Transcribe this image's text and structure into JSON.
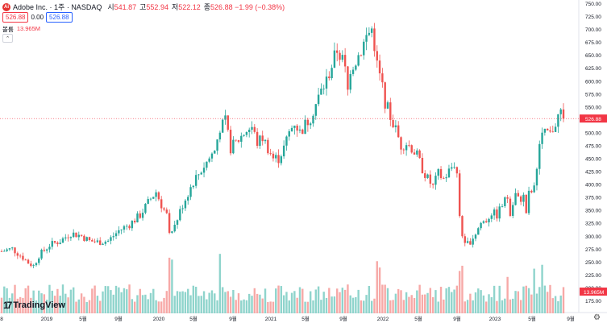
{
  "header": {
    "logo_text": "Ai",
    "title": "Adobe Inc. · 1주 · NASDAQ",
    "ohlc": [
      {
        "k": "시",
        "v": "541.87"
      },
      {
        "k": "고",
        "v": "552.94"
      },
      {
        "k": "저",
        "v": "522.12"
      },
      {
        "k": "종",
        "v": "526.88 −1.99 (−0.38%)"
      }
    ]
  },
  "bidask": {
    "bid": "526.88",
    "spread": "0.00",
    "ask": "526.88"
  },
  "volume": {
    "label": "볼륨",
    "value": "13.965M"
  },
  "brand": {
    "mark": "17",
    "name": "TradingView"
  },
  "colors": {
    "up": "#26a69a",
    "down": "#ef5350",
    "up_vol": "#8fd4cc",
    "down_vol": "#f7a9a7",
    "last": "#f23645"
  },
  "chart_data": {
    "type": "candlestick",
    "interval": "1주",
    "ylim": [
      150,
      750
    ],
    "y_ticks": [
      "175.00",
      "200.00",
      "225.00",
      "250.00",
      "275.00",
      "300.00",
      "325.00",
      "350.00",
      "375.00",
      "400.00",
      "425.00",
      "450.00",
      "475.00",
      "500.00",
      "525.00",
      "550.00",
      "575.00",
      "600.00",
      "625.00",
      "650.00",
      "675.00",
      "700.00",
      "725.00",
      "750.00"
    ],
    "x_ticks": [
      "8",
      "2019",
      "5월",
      "9월",
      "2020",
      "5월",
      "9월",
      "2021",
      "5월",
      "9월",
      "2022",
      "5월",
      "9월",
      "2023",
      "5월",
      "9월"
    ],
    "last_price": "526.88",
    "last_volume": "13.965M",
    "price_path": [
      [
        0,
        270
      ],
      [
        4,
        275
      ],
      [
        8,
        258
      ],
      [
        10,
        248
      ],
      [
        12,
        242
      ],
      [
        14,
        262
      ],
      [
        18,
        282
      ],
      [
        22,
        290
      ],
      [
        26,
        305
      ],
      [
        30,
        300
      ],
      [
        33,
        290
      ],
      [
        36,
        288
      ],
      [
        40,
        290
      ],
      [
        44,
        310
      ],
      [
        48,
        322
      ],
      [
        52,
        340
      ],
      [
        56,
        372
      ],
      [
        58,
        385
      ],
      [
        60,
        360
      ],
      [
        62,
        340
      ],
      [
        63,
        300
      ],
      [
        65,
        320
      ],
      [
        68,
        360
      ],
      [
        72,
        405
      ],
      [
        76,
        435
      ],
      [
        80,
        465
      ],
      [
        82,
        510
      ],
      [
        84,
        520
      ],
      [
        86,
        470
      ],
      [
        88,
        480
      ],
      [
        92,
        505
      ],
      [
        94,
        510
      ],
      [
        96,
        480
      ],
      [
        98,
        490
      ],
      [
        102,
        450
      ],
      [
        104,
        450
      ],
      [
        106,
        470
      ],
      [
        108,
        500
      ],
      [
        110,
        520
      ],
      [
        112,
        500
      ],
      [
        116,
        530
      ],
      [
        120,
        580
      ],
      [
        122,
        600
      ],
      [
        124,
        630
      ],
      [
        126,
        660
      ],
      [
        127,
        650
      ],
      [
        128,
        640
      ],
      [
        129,
        620
      ],
      [
        130,
        580
      ],
      [
        131,
        625
      ],
      [
        133,
        640
      ],
      [
        135,
        660
      ],
      [
        137,
        685
      ],
      [
        139,
        700
      ],
      [
        140,
        670
      ],
      [
        141,
        630
      ],
      [
        142,
        612
      ],
      [
        144,
        560
      ],
      [
        146,
        530
      ],
      [
        148,
        505
      ],
      [
        150,
        475
      ],
      [
        152,
        480
      ],
      [
        154,
        470
      ],
      [
        156,
        455
      ],
      [
        158,
        430
      ],
      [
        160,
        410
      ],
      [
        162,
        395
      ],
      [
        164,
        420
      ],
      [
        166,
        410
      ],
      [
        168,
        425
      ],
      [
        170,
        440
      ],
      [
        171,
        420
      ],
      [
        172,
        340
      ],
      [
        173,
        300
      ],
      [
        174,
        280
      ],
      [
        176,
        290
      ],
      [
        178,
        305
      ],
      [
        180,
        325
      ],
      [
        182,
        330
      ],
      [
        184,
        345
      ],
      [
        186,
        340
      ],
      [
        188,
        360
      ],
      [
        190,
        375
      ],
      [
        191,
        340
      ],
      [
        193,
        380
      ],
      [
        194,
        370
      ],
      [
        196,
        375
      ],
      [
        197,
        345
      ],
      [
        198,
        380
      ],
      [
        200,
        390
      ],
      [
        201,
        440
      ],
      [
        202,
        470
      ],
      [
        203,
        490
      ],
      [
        205,
        500
      ],
      [
        206,
        495
      ],
      [
        208,
        520
      ],
      [
        210,
        540
      ],
      [
        211,
        527
      ]
    ],
    "volume_notes": "weekly volume bars shown as relative heights, spikes near 2020-03, 2020-09, 2022-01, 2022-09, 2023-06"
  }
}
